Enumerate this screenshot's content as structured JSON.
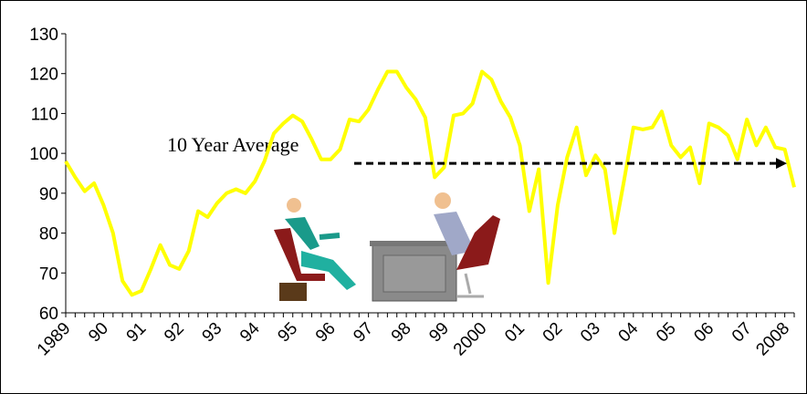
{
  "chart_data": {
    "type": "line",
    "categories": [
      "1989",
      null,
      null,
      null,
      "90",
      null,
      null,
      null,
      "91",
      null,
      null,
      null,
      "92",
      null,
      null,
      null,
      "93",
      null,
      null,
      null,
      "94",
      null,
      null,
      null,
      "95",
      null,
      null,
      null,
      "96",
      null,
      null,
      null,
      "97",
      null,
      null,
      null,
      "98",
      null,
      null,
      null,
      "99",
      null,
      null,
      null,
      "2000",
      null,
      null,
      null,
      "01",
      null,
      null,
      null,
      "02",
      null,
      null,
      null,
      "03",
      null,
      null,
      null,
      "04",
      null,
      null,
      null,
      "05",
      null,
      null,
      null,
      "06",
      null,
      null,
      null,
      "07",
      null,
      null,
      null,
      "2008",
      null
    ],
    "series": [
      {
        "color": "#ffff00",
        "values": [
          98,
          94,
          90.5,
          92.5,
          87,
          80,
          68,
          64.5,
          65.5,
          71,
          77,
          72,
          71,
          75.5,
          85.5,
          84,
          87.5,
          90,
          91,
          90,
          93,
          98,
          105,
          107.5,
          109.5,
          108,
          103.5,
          98.5,
          98.5,
          101,
          108.5,
          108,
          111,
          116,
          120.5,
          120.5,
          116.5,
          113.5,
          109,
          94,
          96.5,
          109.5,
          110,
          112.5,
          120.5,
          118.5,
          113,
          109,
          102,
          85.5,
          96,
          67.5,
          87,
          99,
          106.5,
          94.5,
          99.5,
          96,
          80,
          93,
          106.5,
          106,
          106.5,
          110.5,
          102,
          99,
          101.5,
          92.5,
          107.5,
          106.5,
          104.5,
          98.5,
          108.5,
          102,
          106.5,
          101.5,
          101,
          91.5
        ]
      }
    ],
    "ylim": [
      60,
      130
    ],
    "yticks": [
      60,
      70,
      80,
      90,
      100,
      110,
      120,
      130
    ],
    "annotation": {
      "text": "10 Year Average",
      "value": 97.5
    }
  }
}
